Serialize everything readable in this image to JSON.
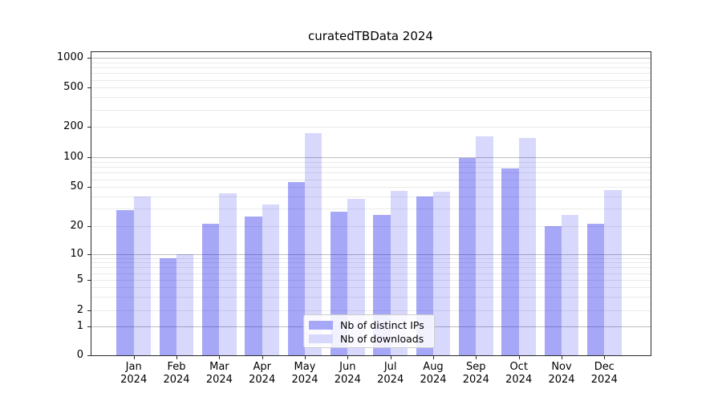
{
  "title": "curatedTBData 2024",
  "colors": {
    "ips_bar": "rgba(10,10,235,0.36)",
    "downloads_bar": "rgba(10,10,235,0.16)",
    "legend_swatch_ips": "#a7a7f8",
    "legend_swatch_downloads": "#d8d8fc",
    "grid_minor": "#eaeaea",
    "grid_major": "#bdbdbd",
    "axis": "#2a2a2a"
  },
  "legend": {
    "items": [
      {
        "label": "Nb of distinct IPs",
        "series": "ips"
      },
      {
        "label": "Nb of downloads",
        "series": "downloads"
      }
    ]
  },
  "chart_data": {
    "type": "bar",
    "title": "curatedTBData 2024",
    "categories": [
      "Jan",
      "Feb",
      "Mar",
      "Apr",
      "May",
      "Jun",
      "Jul",
      "Aug",
      "Sep",
      "Oct",
      "Nov",
      "Dec"
    ],
    "year_label": "2024",
    "series": [
      {
        "name": "Nb of distinct IPs",
        "values": [
          29,
          9,
          21,
          25,
          56,
          28,
          26,
          40,
          98,
          77,
          20,
          21
        ]
      },
      {
        "name": "Nb of downloads",
        "values": [
          40,
          10,
          43,
          33,
          175,
          38,
          46,
          45,
          160,
          156,
          26,
          47
        ]
      }
    ],
    "xlabel": "",
    "ylabel": "",
    "yscale": "symlog-like",
    "yticks": [
      0,
      1,
      2,
      5,
      10,
      20,
      50,
      100,
      200,
      500,
      1000
    ],
    "ylim": [
      0,
      1170
    ],
    "grid": true,
    "legend_position": "lower center"
  }
}
